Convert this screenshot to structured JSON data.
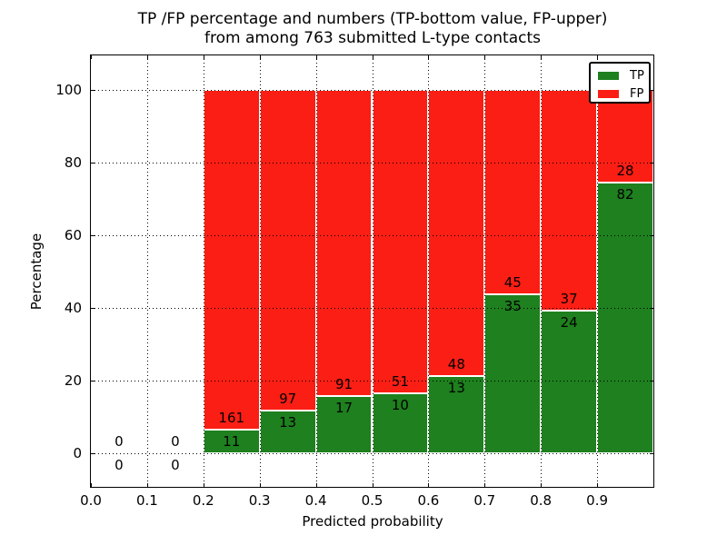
{
  "title": {
    "line1": "TP /FP percentage and numbers (TP-bottom value, FP-upper)",
    "line2": "from among 763 submitted L-type contacts"
  },
  "axes": {
    "xlabel": "Predicted probability",
    "ylabel": "Percentage",
    "x_tick_labels": [
      "0.0",
      "0.1",
      "0.2",
      "0.3",
      "0.4",
      "0.5",
      "0.6",
      "0.7",
      "0.8",
      "0.9"
    ],
    "y_tick_labels": [
      "0",
      "20",
      "40",
      "60",
      "80",
      "100"
    ]
  },
  "legend": {
    "items": [
      {
        "label": "TP",
        "color": "#1e801e"
      },
      {
        "label": "FP",
        "color": "#fb1e14"
      }
    ]
  },
  "colors": {
    "tp": "#1e801e",
    "fp": "#fb1e14",
    "grid": "#000000",
    "background": "#ffffff",
    "bar_edge": "#ffffff"
  },
  "chart_data": {
    "type": "bar",
    "stacked": true,
    "title": "TP /FP percentage and numbers (TP-bottom value, FP-upper) from among 763 submitted L-type contacts",
    "xlabel": "Predicted probability",
    "ylabel": "Percentage",
    "xlim": [
      0,
      1
    ],
    "ylim": [
      -9.3,
      109.6
    ],
    "x_tick_values": [
      0.0,
      0.1,
      0.2,
      0.3,
      0.4,
      0.5,
      0.6,
      0.7,
      0.8,
      0.9
    ],
    "y_tick_values": [
      0,
      20,
      40,
      60,
      80,
      100
    ],
    "grid": true,
    "legend_position": "upper right",
    "bin_width": 0.1,
    "series_note_tp_bottom_fp_top": true,
    "bins": [
      {
        "x_start": 0.0,
        "tp_count": 0,
        "fp_count": 0,
        "tp_pct": 0,
        "fp_pct": 0
      },
      {
        "x_start": 0.1,
        "tp_count": 0,
        "fp_count": 0,
        "tp_pct": 0,
        "fp_pct": 0
      },
      {
        "x_start": 0.2,
        "tp_count": 11,
        "fp_count": 161,
        "tp_pct": 6.4,
        "fp_pct": 93.6
      },
      {
        "x_start": 0.3,
        "tp_count": 13,
        "fp_count": 97,
        "tp_pct": 11.82,
        "fp_pct": 88.18
      },
      {
        "x_start": 0.4,
        "tp_count": 17,
        "fp_count": 91,
        "tp_pct": 15.74,
        "fp_pct": 84.26
      },
      {
        "x_start": 0.5,
        "tp_count": 10,
        "fp_count": 51,
        "tp_pct": 16.39,
        "fp_pct": 83.61
      },
      {
        "x_start": 0.6,
        "tp_count": 13,
        "fp_count": 48,
        "tp_pct": 21.31,
        "fp_pct": 78.69
      },
      {
        "x_start": 0.7,
        "tp_count": 35,
        "fp_count": 45,
        "tp_pct": 43.75,
        "fp_pct": 56.25
      },
      {
        "x_start": 0.8,
        "tp_count": 24,
        "fp_count": 37,
        "tp_pct": 39.34,
        "fp_pct": 60.66
      },
      {
        "x_start": 0.9,
        "tp_count": 82,
        "fp_count": 28,
        "tp_pct": 74.55,
        "fp_pct": 25.45
      }
    ]
  }
}
